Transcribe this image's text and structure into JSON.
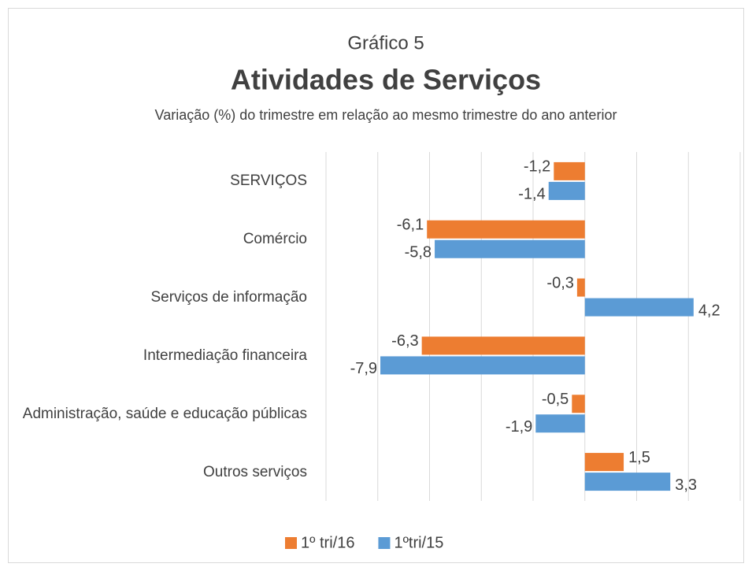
{
  "chart_data": {
    "type": "barh",
    "chart_label": "Gráfico 5",
    "title": "Atividades de Serviços",
    "subtitle": "Variação (%) do trimestre em relação ao mesmo trimestre do ano anterior",
    "categories": [
      "SERVIÇOS",
      "Comércio",
      "Serviços de informação",
      "Intermediação financeira",
      "Administração, saúde e educação públicas",
      "Outros serviços"
    ],
    "series": [
      {
        "name": "1º tri/16",
        "color": "#ed7d31",
        "values": [
          -1.2,
          -6.1,
          -0.3,
          -6.3,
          -0.5,
          1.5
        ],
        "value_labels": [
          "-1,2",
          "-6,1",
          "-0,3",
          "-6,3",
          "-0,5",
          "1,5"
        ]
      },
      {
        "name": "1ºtri/15",
        "color": "#5b9bd5",
        "values": [
          -1.4,
          -5.8,
          4.2,
          -7.9,
          -1.9,
          3.3
        ],
        "value_labels": [
          "-1,4",
          "-5,8",
          "4,2",
          "-7,9",
          "-1,9",
          "3,3"
        ]
      }
    ],
    "xlim": [
      -10,
      6
    ],
    "xticks": [
      -10,
      -8,
      -6,
      -4,
      -2,
      0,
      2,
      4,
      6
    ],
    "grid": true,
    "legend": "bottom"
  }
}
